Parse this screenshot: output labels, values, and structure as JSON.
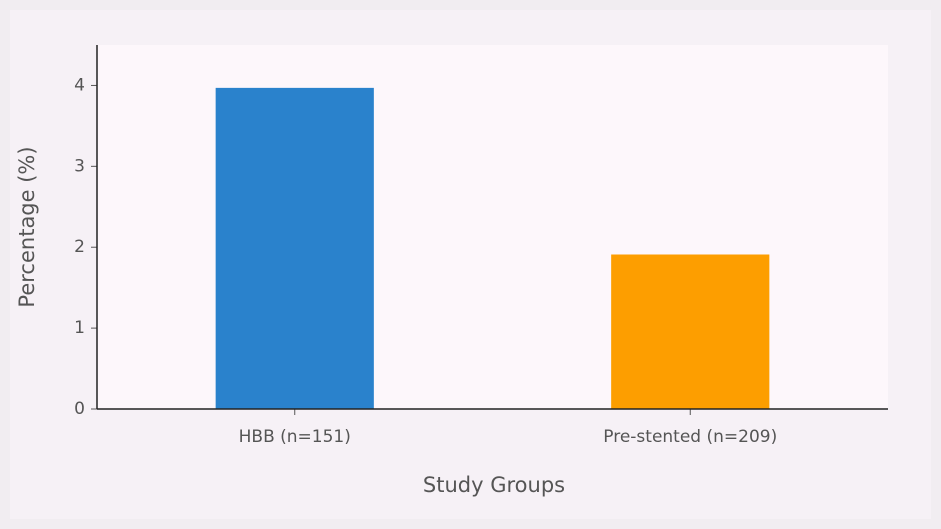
{
  "chart_data": {
    "type": "bar",
    "x_label": "Study Groups",
    "y_label": "Percentage (%)",
    "categories": [
      "HBB (n=151)",
      "Pre-stented (n=209)"
    ],
    "values": [
      3.97,
      1.91
    ],
    "colors": [
      "#2a82cc",
      "#fd9e00"
    ],
    "ylim": [
      0,
      4.5
    ],
    "yticks": [
      0,
      1,
      2,
      3,
      4
    ],
    "grid": false
  }
}
